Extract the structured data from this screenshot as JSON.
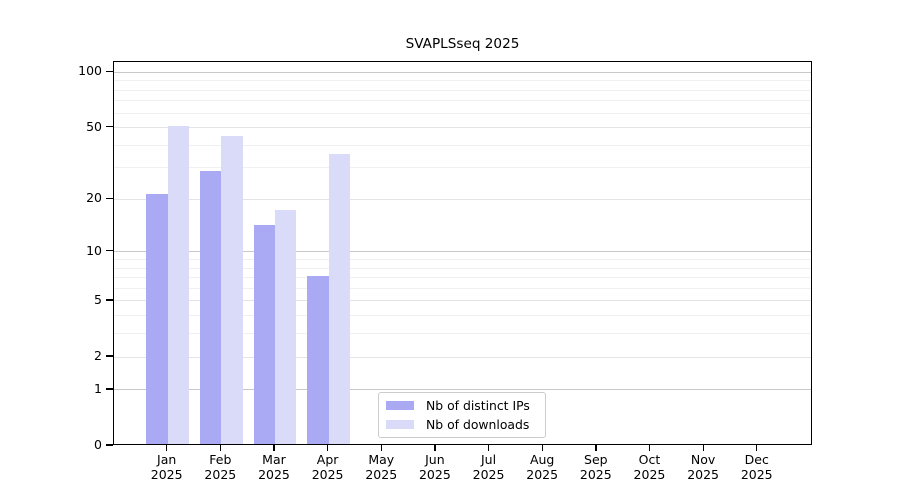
{
  "title": "SVAPLSseq 2025",
  "chart_data": {
    "type": "bar",
    "title": "SVAPLSseq 2025",
    "categories": [
      "Jan",
      "Feb",
      "Mar",
      "Apr",
      "May",
      "Jun",
      "Jul",
      "Aug",
      "Sep",
      "Oct",
      "Nov",
      "Dec"
    ],
    "category_year": "2025",
    "series": [
      {
        "name": "Nb of distinct IPs",
        "color": "#aaa9f4",
        "values": [
          21,
          28,
          14,
          7,
          0,
          0,
          0,
          0,
          0,
          0,
          0,
          0
        ]
      },
      {
        "name": "Nb of downloads",
        "color": "#dadaf9",
        "values": [
          50,
          44,
          17,
          35,
          0,
          0,
          0,
          0,
          0,
          0,
          0,
          0
        ]
      }
    ],
    "yscale": "log1p",
    "ylim": [
      0,
      113
    ],
    "yticks": [
      0,
      1,
      2,
      5,
      10,
      20,
      50,
      100
    ],
    "major_yticks": [
      1,
      10,
      100
    ],
    "minor_gridlines": [
      3,
      4,
      6,
      7,
      8,
      9,
      30,
      40,
      60,
      70,
      80,
      90
    ],
    "grid": "on",
    "legend_position": "lower center",
    "colors": {
      "major_grid": "#c8c8c8",
      "labeled_grid": "#e4e4e4",
      "minor_grid": "#f0f0f0",
      "spine": "#000000",
      "text": "#000000",
      "legend_border": "#cccccc"
    }
  }
}
